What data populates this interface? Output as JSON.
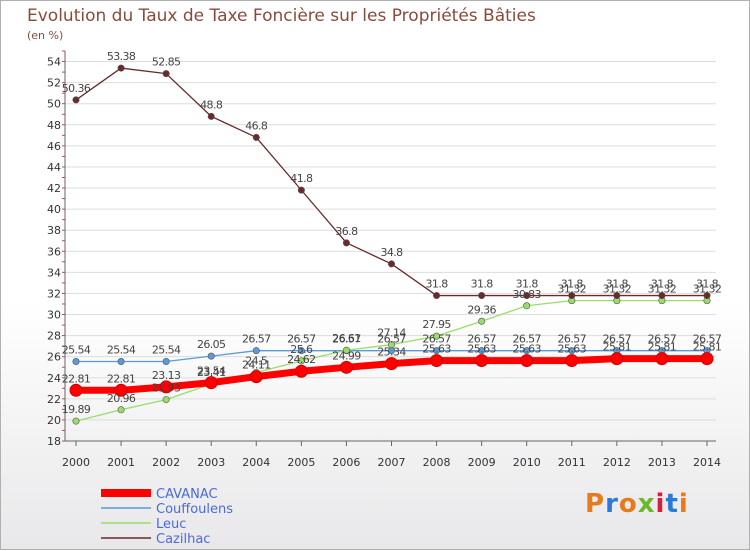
{
  "chart_data": {
    "type": "line",
    "title": "Evolution du Taux de Taxe Foncière sur les Propriétés Bâties",
    "ylabel": "(en %)",
    "xlabel": "",
    "ylim": [
      18,
      55
    ],
    "yticks": [
      "18",
      "20",
      "22",
      "24",
      "26",
      "28",
      "30",
      "32",
      "34",
      "36",
      "38",
      "40",
      "42",
      "44",
      "46",
      "48",
      "50",
      "52",
      "54"
    ],
    "x": [
      "2000",
      "2001",
      "2002",
      "2003",
      "2004",
      "2005",
      "2006",
      "2007",
      "2008",
      "2009",
      "2010",
      "2011",
      "2012",
      "2013",
      "2014"
    ],
    "series": [
      {
        "name": "CAVANAC",
        "color": "#ff0000",
        "values": [
          22.81,
          22.81,
          23.13,
          23.54,
          24.11,
          24.62,
          24.99,
          25.34,
          25.63,
          25.63,
          25.63,
          25.63,
          25.81,
          25.81,
          25.81
        ],
        "labels": [
          "22.81",
          "22.81",
          "23.13",
          "23.54",
          "24.11",
          "24.62",
          "24.99",
          "25.34",
          "25.63",
          "25.63",
          "25.63",
          "25.63",
          "25.81",
          "25.81",
          "25.81"
        ]
      },
      {
        "name": "Couffoulens",
        "color": "#5a9ad8",
        "values": [
          25.54,
          25.54,
          25.54,
          26.05,
          26.57,
          26.57,
          26.57,
          26.57,
          26.57,
          26.57,
          26.57,
          26.57,
          26.57,
          26.57,
          26.57
        ],
        "labels": [
          "25.54",
          "25.54",
          "25.54",
          "26.05",
          "26.57",
          "26.57",
          "26.57",
          "26.57",
          "26.57",
          "26.57",
          "26.57",
          "26.57",
          "26.57",
          "26.57",
          "26.57"
        ]
      },
      {
        "name": "Leuc",
        "color": "#99dd66",
        "values": [
          19.89,
          20.96,
          21.93,
          23.41,
          24.5,
          25.6,
          26.61,
          27.14,
          27.95,
          29.36,
          30.83,
          31.32,
          31.32,
          31.32,
          31.32
        ],
        "labels": [
          "19.89",
          "20.96",
          "21.93",
          "23.41",
          "24.5",
          "25.6",
          "26.61",
          "27.14",
          "27.95",
          "29.36",
          "30.83",
          "31.32",
          "31.32",
          "31.32",
          "31.32"
        ]
      },
      {
        "name": "Cazilhac",
        "color": "#6b2a2a",
        "values": [
          50.36,
          53.38,
          52.85,
          48.8,
          46.8,
          41.8,
          36.8,
          34.8,
          31.8,
          31.8,
          31.8,
          31.8,
          31.8,
          31.8,
          31.8
        ],
        "labels": [
          "50.36",
          "53.38",
          "52.85",
          "48.8",
          "46.8",
          "41.8",
          "36.8",
          "34.8",
          "31.8",
          "31.8",
          "31.8",
          "31.8",
          "31.8",
          "31.8",
          "31.8"
        ]
      }
    ],
    "legend_position": "bottom-left"
  },
  "logo": {
    "text": "Proxiti",
    "colors": [
      "#e87a1e",
      "#2a7ad8",
      "#e87a1e",
      "#6cb82a",
      "#d81e3a",
      "#2a7ad8",
      "#e87a1e"
    ]
  }
}
